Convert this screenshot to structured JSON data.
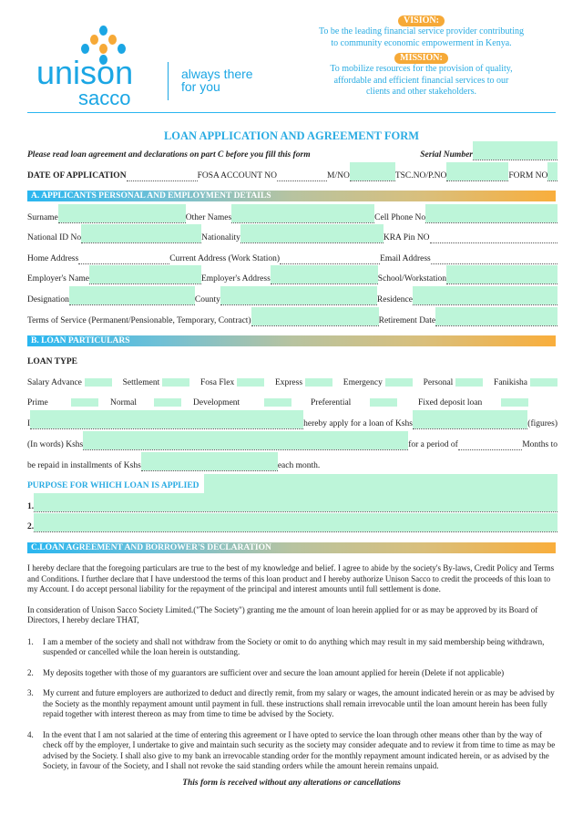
{
  "header": {
    "logo_word1": "unison",
    "logo_word2": "sacco",
    "tagline1": "always there",
    "tagline2": "for you",
    "vision_label": "VISION:",
    "vision_text": [
      "To be the leading financial service provider contributing",
      "to community economic empowerment in Kenya."
    ],
    "mission_label": "MISSION:",
    "mission_text": [
      "To mobilize resources for the provision of quality,",
      "affordable and efficient financial services to our",
      "clients and other stakeholders."
    ],
    "colors": {
      "brand_blue": "#1ba6e4",
      "brand_orange": "#f6a937",
      "field_green": "#bdf5d9"
    }
  },
  "title": "LOAN APPLICATION AND AGREEMENT FORM",
  "notice": "Please read loan agreement and declarations on part C before you fill this form",
  "serial_label": "Serial Number",
  "date_row": {
    "date": "DATE OF APPLICATION",
    "fosa": "FOSA ACCOUNT NO",
    "mno": "M/NO",
    "tsc": "TSC.NO/P.NO",
    "form": "FORM NO"
  },
  "section_a": {
    "title": "A. APPLICANTS PERSONAL AND EMPLOYMENT DETAILS",
    "surname": "Surname ",
    "other_names": "Other Names",
    "cell": "Cell Phone No",
    "national_id": "National ID No",
    "nationality": " Nationality",
    "kra": "KRA Pin NO",
    "home": "Home Address ",
    "current": "Current Address (Work Station)",
    "email": " Email Address",
    "employer_name": "Employer's Name",
    "employer_address": "Employer's Address ",
    "school": " School/Workstation",
    "designation": "Designation",
    "county": "County",
    "residence": "Residence",
    "terms": "Terms of Service (Permanent/Pensionable, Temporary, Contract) ",
    "retirement": "Retirement Date"
  },
  "section_b": {
    "title": "B. LOAN PARTICULARS",
    "loan_type": "LOAN TYPE",
    "types_row1": [
      "Salary Advance",
      "Settlement",
      "Fosa Flex",
      "Express",
      "Emergency",
      "Personal",
      "Fanikisha"
    ],
    "types_row2": [
      "Prime",
      "Normal",
      "Development",
      "Preferential",
      "Fixed deposit loan"
    ],
    "i": "I",
    "apply": " hereby apply for a loan of Kshs",
    "figures": " (figures)",
    "words": "(In words) Kshs",
    "period": " for a period of ",
    "months": " Months to",
    "repaid": "be repaid in installments of Kshs ",
    "each_month": " each month.",
    "purpose": "PURPOSE FOR WHICH LOAN IS APPLIED",
    "p1": "1. ",
    "p2": "2. "
  },
  "section_c": {
    "title": "C.LOAN AGREEMENT AND BORROWER'S DECLARATION",
    "para1": "I hereby declare that the foregoing particulars are true to the best of my knowledge and belief. I agree to abide by the society's By-laws, Credit Policy and Terms and Conditions. I further declare that I have understood the terms of this loan product and I hereby authorize Unison Sacco to credit the proceeds of this loan to my Account. I do accept personal liability for the repayment of the principal and interest amounts until full settlement is done.",
    "para2": "In consideration of Unison Sacco Society Limited.(\"The Society\") granting me the amount of loan herein applied for or as may be approved by its Board of Directors, I hereby declare THAT,",
    "items": [
      {
        "n": "1.",
        "text": "I am a member of the society and shall not withdraw from the Society or omit to do anything which may result in my said membership being withdrawn, suspended or cancelled while the loan herein is outstanding."
      },
      {
        "n": "2.",
        "text": "My deposits together with those of my guarantors are sufficient over and secure the loan amount applied for herein (Delete if not applicable)"
      },
      {
        "n": "3.",
        "text": "My current and future employers are authorized to deduct and directly remit, from my salary or wages, the amount indicated herein or as may be advised by the Society as the monthly repayment amount until payment in full. these instructions shall remain irrevocable until the loan amount herein has been fully repaid together with interest thereon as may from time to time be advised by the Society."
      },
      {
        "n": "4.",
        "text": "In the event that I am not salaried at the time of entering this agreement or I have opted to service the loan through other means other than by the way of check off by the employer, I undertake to give and maintain such security as the society may consider adequate and to review it from time to time as may be advised by the Society. I shall also give to my bank an irrevocable standing order for the monthly repayment amount indicated herein, or as advised by the Society, in favour of the Society, and I shall not revoke the said standing orders while the amount herein remains unpaid."
      }
    ]
  },
  "footer": "This form is received without any alterations or cancellations"
}
